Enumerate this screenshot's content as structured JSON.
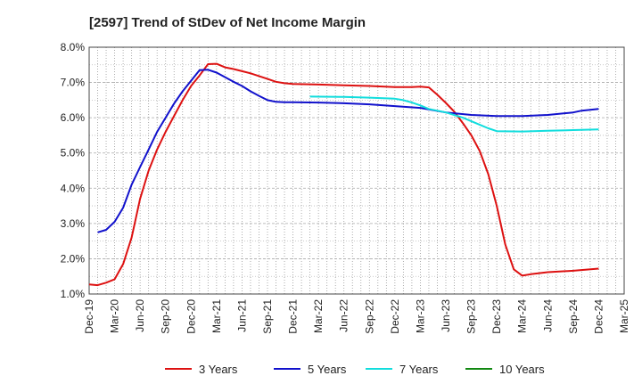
{
  "chart_data": {
    "type": "line",
    "title": "[2597]  Trend of StDev of Net Income Margin",
    "xlabel": "",
    "ylabel": "",
    "ylim": [
      1.0,
      8.0
    ],
    "y_ticks": [
      "1.0%",
      "2.0%",
      "3.0%",
      "4.0%",
      "5.0%",
      "6.0%",
      "7.0%",
      "8.0%"
    ],
    "x_ticks": [
      "Dec-19",
      "Mar-20",
      "Jun-20",
      "Sep-20",
      "Dec-20",
      "Mar-21",
      "Jun-21",
      "Sep-21",
      "Dec-21",
      "Mar-22",
      "Jun-22",
      "Sep-22",
      "Dec-22",
      "Mar-23",
      "Jun-23",
      "Sep-23",
      "Dec-23",
      "Mar-24",
      "Jun-24",
      "Sep-24",
      "Dec-24",
      "Mar-25"
    ],
    "grid": true,
    "legend_position": "bottom",
    "series": [
      {
        "name": "3 Years",
        "color": "#dd1111",
        "points": [
          [
            "Dec-19",
            1.27
          ],
          [
            "Jan-20",
            1.25
          ],
          [
            "Feb-20",
            1.32
          ],
          [
            "Mar-20",
            1.42
          ],
          [
            "Apr-20",
            1.85
          ],
          [
            "May-20",
            2.6
          ],
          [
            "Jun-20",
            3.7
          ],
          [
            "Jul-20",
            4.5
          ],
          [
            "Aug-20",
            5.1
          ],
          [
            "Sep-20",
            5.6
          ],
          [
            "Oct-20",
            6.05
          ],
          [
            "Nov-20",
            6.5
          ],
          [
            "Dec-20",
            6.9
          ],
          [
            "Jan-21",
            7.2
          ],
          [
            "Feb-21",
            7.52
          ],
          [
            "Mar-21",
            7.53
          ],
          [
            "Apr-21",
            7.43
          ],
          [
            "May-21",
            7.38
          ],
          [
            "Jun-21",
            7.32
          ],
          [
            "Jul-21",
            7.26
          ],
          [
            "Aug-21",
            7.18
          ],
          [
            "Sep-21",
            7.1
          ],
          [
            "Oct-21",
            7.02
          ],
          [
            "Nov-21",
            6.98
          ],
          [
            "Dec-21",
            6.96
          ],
          [
            "Mar-22",
            6.94
          ],
          [
            "Jun-22",
            6.92
          ],
          [
            "Sep-22",
            6.9
          ],
          [
            "Dec-22",
            6.87
          ],
          [
            "Feb-23",
            6.87
          ],
          [
            "Mar-23",
            6.88
          ],
          [
            "Apr-23",
            6.86
          ],
          [
            "May-23",
            6.65
          ],
          [
            "Jun-23",
            6.42
          ],
          [
            "Jul-23",
            6.17
          ],
          [
            "Aug-23",
            5.85
          ],
          [
            "Sep-23",
            5.5
          ],
          [
            "Oct-23",
            5.05
          ],
          [
            "Nov-23",
            4.4
          ],
          [
            "Dec-23",
            3.5
          ],
          [
            "Jan-24",
            2.4
          ],
          [
            "Feb-24",
            1.7
          ],
          [
            "Mar-24",
            1.52
          ],
          [
            "Apr-24",
            1.56
          ],
          [
            "Jun-24",
            1.62
          ],
          [
            "Sep-24",
            1.66
          ],
          [
            "Dec-24",
            1.72
          ]
        ]
      },
      {
        "name": "5 Years",
        "color": "#1111cc",
        "points": [
          [
            "Jan-20",
            2.75
          ],
          [
            "Feb-20",
            2.82
          ],
          [
            "Mar-20",
            3.05
          ],
          [
            "Apr-20",
            3.45
          ],
          [
            "May-20",
            4.1
          ],
          [
            "Jun-20",
            4.6
          ],
          [
            "Jul-20",
            5.1
          ],
          [
            "Aug-20",
            5.6
          ],
          [
            "Sep-20",
            6.0
          ],
          [
            "Oct-20",
            6.4
          ],
          [
            "Nov-20",
            6.75
          ],
          [
            "Dec-20",
            7.05
          ],
          [
            "Jan-21",
            7.35
          ],
          [
            "Feb-21",
            7.36
          ],
          [
            "Mar-21",
            7.28
          ],
          [
            "Apr-21",
            7.15
          ],
          [
            "May-21",
            7.02
          ],
          [
            "Jun-21",
            6.9
          ],
          [
            "Jul-21",
            6.75
          ],
          [
            "Aug-21",
            6.62
          ],
          [
            "Sep-21",
            6.5
          ],
          [
            "Oct-21",
            6.45
          ],
          [
            "Nov-21",
            6.44
          ],
          [
            "Dec-21",
            6.44
          ],
          [
            "Mar-22",
            6.43
          ],
          [
            "Jun-22",
            6.41
          ],
          [
            "Sep-22",
            6.38
          ],
          [
            "Dec-22",
            6.33
          ],
          [
            "Mar-23",
            6.28
          ],
          [
            "Jun-23",
            6.15
          ],
          [
            "Sep-23",
            6.08
          ],
          [
            "Dec-23",
            6.05
          ],
          [
            "Mar-24",
            6.05
          ],
          [
            "Jun-24",
            6.08
          ],
          [
            "Sep-24",
            6.15
          ],
          [
            "Oct-24",
            6.2
          ],
          [
            "Dec-24",
            6.25
          ]
        ]
      },
      {
        "name": "7 Years",
        "color": "#11dddd",
        "points": [
          [
            "Feb-22",
            6.6
          ],
          [
            "Jun-22",
            6.59
          ],
          [
            "Sep-22",
            6.57
          ],
          [
            "Dec-22",
            6.54
          ],
          [
            "Jan-23",
            6.5
          ],
          [
            "Feb-23",
            6.43
          ],
          [
            "Mar-23",
            6.35
          ],
          [
            "Apr-23",
            6.25
          ],
          [
            "Jun-23",
            6.15
          ],
          [
            "Aug-23",
            6.0
          ],
          [
            "Sep-23",
            5.9
          ],
          [
            "Oct-23",
            5.8
          ],
          [
            "Nov-23",
            5.7
          ],
          [
            "Dec-23",
            5.62
          ],
          [
            "Mar-24",
            5.61
          ],
          [
            "Jun-24",
            5.63
          ],
          [
            "Sep-24",
            5.65
          ],
          [
            "Dec-24",
            5.67
          ]
        ]
      },
      {
        "name": "10 Years",
        "color": "#118811",
        "points": []
      }
    ]
  }
}
